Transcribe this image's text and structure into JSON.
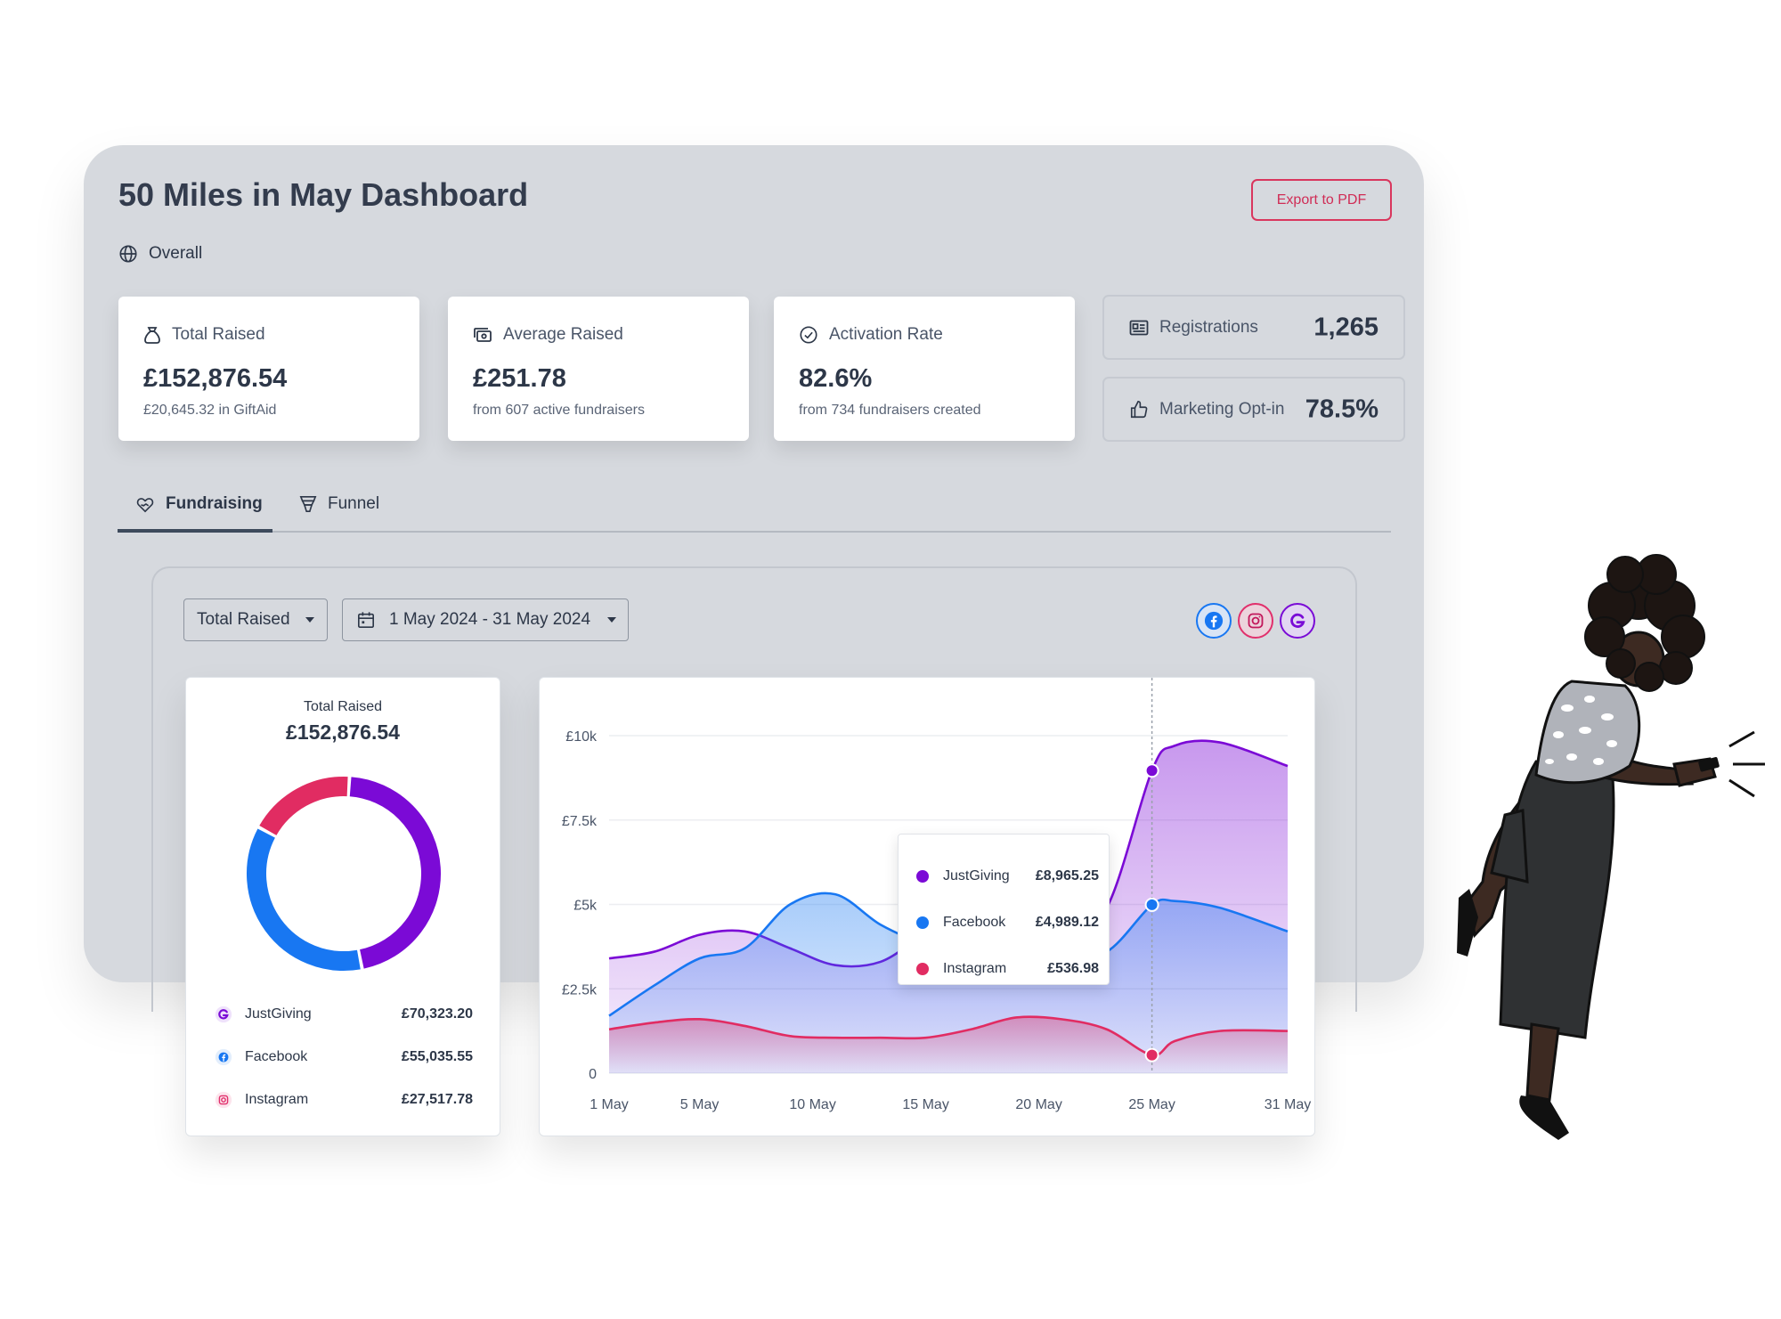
{
  "header": {
    "title": "50 Miles in May Dashboard",
    "export_label": "Export to PDF",
    "scope_label": "Overall"
  },
  "stats": [
    {
      "label": "Total Raised",
      "value": "£152,876.54",
      "sub": "£20,645.32 in GiftAid",
      "icon": "money-bag-icon"
    },
    {
      "label": "Average Raised",
      "value": "£251.78",
      "sub": "from 607 active fundraisers",
      "icon": "cash-icon"
    },
    {
      "label": "Activation Rate",
      "value": "82.6%",
      "sub": "from 734 fundraisers created",
      "icon": "check-circle-icon"
    }
  ],
  "mini_stats": [
    {
      "label": "Registrations",
      "value": "1,265",
      "icon": "id-card-icon"
    },
    {
      "label": "Marketing Opt-in",
      "value": "78.5%",
      "icon": "thumbs-up-icon"
    }
  ],
  "tabs": [
    {
      "label": "Fundraising",
      "icon": "heart-hand-icon",
      "active": true
    },
    {
      "label": "Funnel",
      "icon": "funnel-icon",
      "active": false
    }
  ],
  "filters": {
    "metric": "Total Raised",
    "date_range": "1 May 2024 - 31 May 2024"
  },
  "social_filters": [
    {
      "name": "facebook-icon",
      "color": "#1877f2"
    },
    {
      "name": "instagram-icon",
      "color": "#e1306c"
    },
    {
      "name": "justgiving-icon",
      "color": "#7a0bd6"
    }
  ],
  "colors": {
    "justgiving": "#7b0ad6",
    "facebook": "#1877f2",
    "instagram": "#e12c62",
    "accent": "#d02c55"
  },
  "donut": {
    "title": "Total Raised",
    "total": "£152,876.54",
    "items": [
      {
        "name": "JustGiving",
        "value": "£70,323.20",
        "amount": 70323.2,
        "color": "#7b0ad6"
      },
      {
        "name": "Facebook",
        "value": "£55,035.55",
        "amount": 55035.55,
        "color": "#1877f2"
      },
      {
        "name": "Instagram",
        "value": "£27,517.78",
        "amount": 27517.78,
        "color": "#e12c62"
      }
    ]
  },
  "chart_data": {
    "type": "area",
    "x": [
      "1 May",
      "3 May",
      "5 May",
      "7 May",
      "9 May",
      "11 May",
      "13 May",
      "15 May",
      "17 May",
      "19 May",
      "21 May",
      "23 May",
      "25 May",
      "26 May",
      "28 May",
      "31 May"
    ],
    "x_ticks": [
      "1 May",
      "5 May",
      "10 May",
      "15 May",
      "20 May",
      "25 May",
      "31 May"
    ],
    "y_ticks": [
      "0",
      "£2.5k",
      "£5k",
      "£7.5k",
      "£10k"
    ],
    "ylim": [
      0,
      10000
    ],
    "series": [
      {
        "name": "JustGiving",
        "color": "#7b0ad6",
        "values": [
          3400,
          3600,
          4100,
          4200,
          3700,
          3200,
          3300,
          4100,
          4500,
          4300,
          4100,
          4900,
          8965,
          9700,
          9800,
          9100
        ]
      },
      {
        "name": "Facebook",
        "color": "#1877f2",
        "values": [
          1700,
          2600,
          3400,
          3700,
          5000,
          5300,
          4400,
          3800,
          3400,
          3300,
          3500,
          3600,
          4989,
          5100,
          4900,
          4200
        ]
      },
      {
        "name": "Instagram",
        "color": "#e12c62",
        "values": [
          1300,
          1500,
          1600,
          1400,
          1100,
          1050,
          1050,
          1050,
          1300,
          1650,
          1600,
          1300,
          537,
          950,
          1250,
          1250
        ]
      }
    ],
    "highlight": {
      "x": "25 May",
      "entries": [
        {
          "name": "JustGiving",
          "value": "£8,965.25",
          "color": "#7b0ad6"
        },
        {
          "name": "Facebook",
          "value": "£4,989.12",
          "color": "#1877f2"
        },
        {
          "name": "Instagram",
          "value": "£536.98",
          "color": "#e12c62"
        }
      ]
    },
    "grid": true
  }
}
